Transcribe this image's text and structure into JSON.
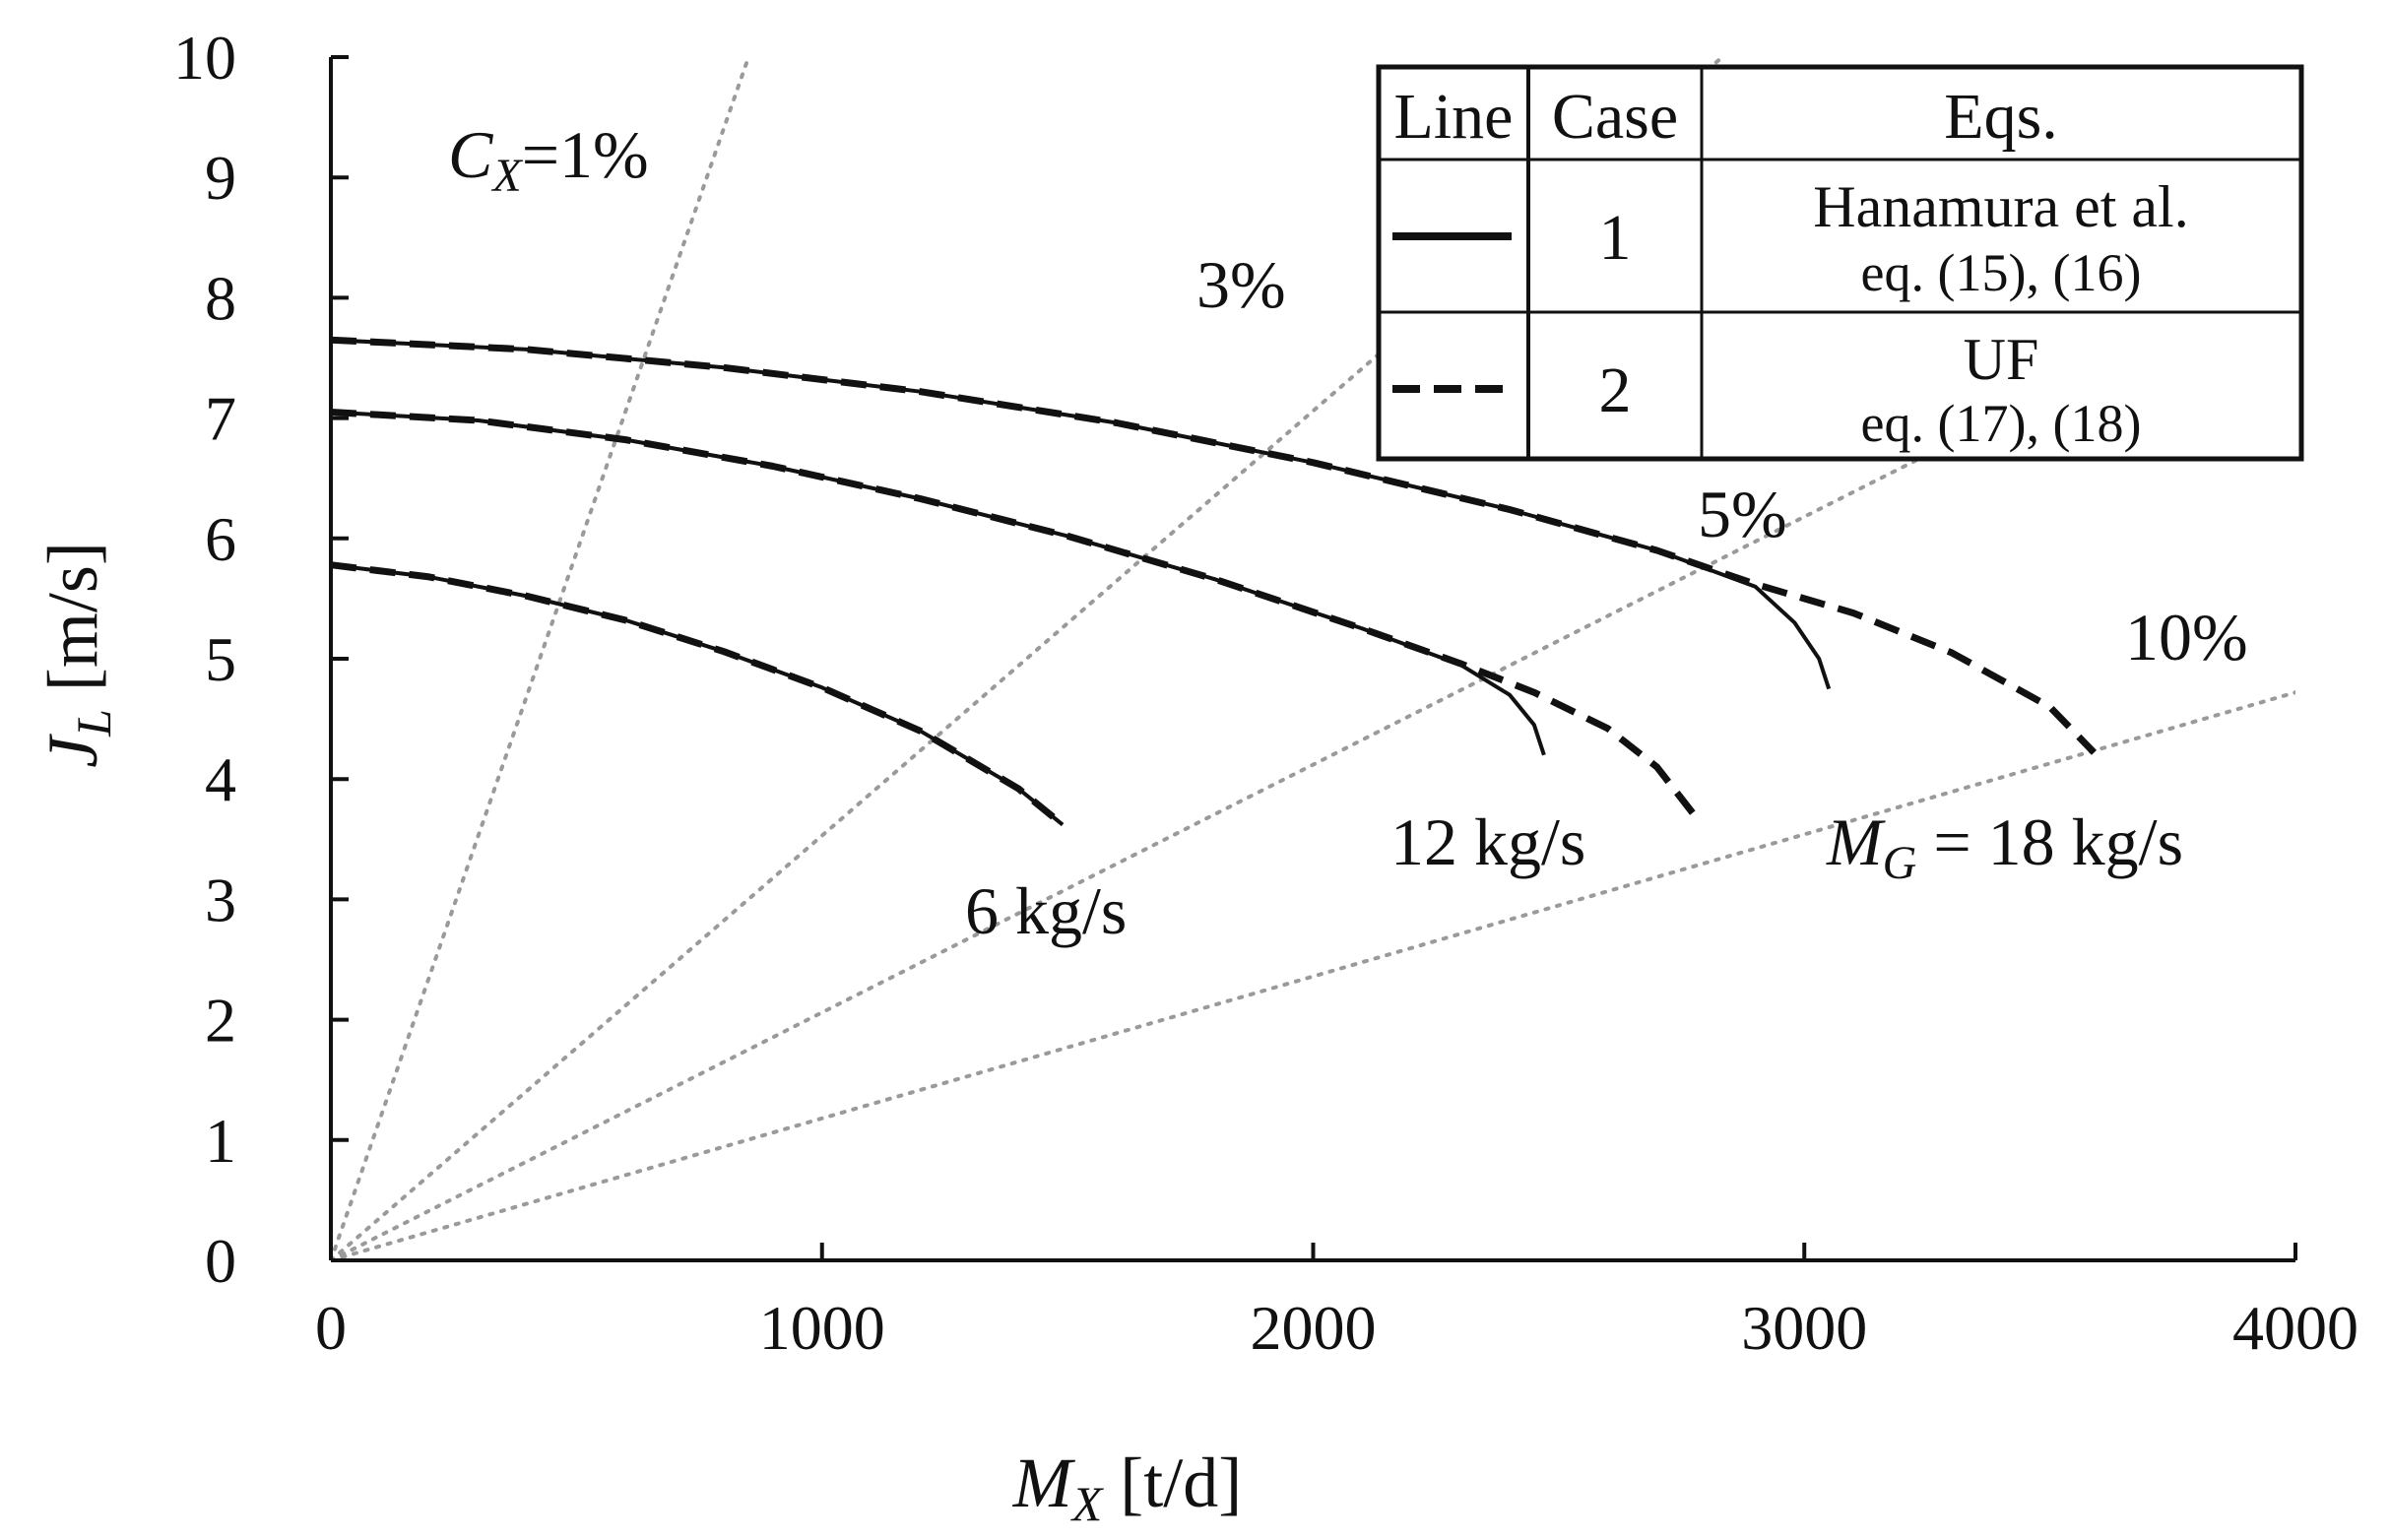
{
  "chart_data": {
    "type": "line",
    "x_axis": {
      "label_main": "M",
      "label_sub": "X",
      "label_unit": " [t/d]",
      "range": [
        0,
        4000
      ],
      "ticks": [
        0,
        1000,
        2000,
        3000,
        4000
      ],
      "tick_labels": [
        "0",
        "1000",
        "2000",
        "3000",
        "4000"
      ]
    },
    "y_axis": {
      "label_main": "J",
      "label_sub": "L",
      "label_unit": " [m/s]",
      "range": [
        0,
        10
      ],
      "ticks": [
        0,
        1,
        2,
        3,
        4,
        5,
        6,
        7,
        8,
        9,
        10
      ],
      "tick_labels": [
        "0",
        "1",
        "2",
        "3",
        "4",
        "5",
        "6",
        "7",
        "8",
        "9",
        "10"
      ]
    },
    "grid": false,
    "concentration_lines": [
      {
        "label": "1%",
        "slope": 0.01176
      },
      {
        "label": "3%",
        "slope": 0.00353
      },
      {
        "label": "5%",
        "slope": 0.00206
      },
      {
        "label": "10%",
        "slope": 0.00118
      }
    ],
    "concentration_prefix_main": "C",
    "concentration_prefix_sub": "X",
    "concentration_prefix_tail": "=",
    "gas_flow_labels": [
      {
        "prefix_main": "",
        "prefix_sub": "",
        "text": "6 kg/s"
      },
      {
        "prefix_main": "",
        "prefix_sub": "",
        "text": "12 kg/s"
      },
      {
        "prefix_main": "M",
        "prefix_sub": "G",
        "text": " = 18 kg/s"
      }
    ],
    "series": [
      {
        "case": "1",
        "group": "6 kg/s",
        "style": "solid",
        "x": [
          0,
          200,
          400,
          600,
          800,
          1000,
          1200,
          1400,
          1490
        ],
        "y": [
          5.78,
          5.68,
          5.52,
          5.32,
          5.06,
          4.76,
          4.4,
          3.92,
          3.62
        ]
      },
      {
        "case": "2",
        "group": "6 kg/s",
        "style": "dashed",
        "x": [
          0,
          200,
          400,
          600,
          800,
          1000,
          1200,
          1400,
          1490
        ],
        "y": [
          5.78,
          5.68,
          5.52,
          5.32,
          5.06,
          4.76,
          4.4,
          3.92,
          3.62
        ]
      },
      {
        "case": "1",
        "group": "12 kg/s",
        "style": "solid",
        "x": [
          0,
          300,
          600,
          900,
          1200,
          1500,
          1800,
          2100,
          2300,
          2400,
          2450,
          2470
        ],
        "y": [
          7.05,
          6.98,
          6.82,
          6.6,
          6.33,
          6.02,
          5.66,
          5.25,
          4.95,
          4.7,
          4.45,
          4.2
        ]
      },
      {
        "case": "2",
        "group": "12 kg/s",
        "style": "dashed",
        "x": [
          0,
          300,
          600,
          900,
          1200,
          1500,
          1800,
          2100,
          2300,
          2450,
          2600,
          2700,
          2780
        ],
        "y": [
          7.05,
          6.98,
          6.82,
          6.6,
          6.33,
          6.02,
          5.66,
          5.25,
          4.96,
          4.72,
          4.42,
          4.1,
          3.68
        ]
      },
      {
        "case": "1",
        "group": "18 kg/s",
        "style": "solid",
        "x": [
          0,
          400,
          800,
          1200,
          1600,
          2000,
          2400,
          2700,
          2900,
          2980,
          3030,
          3050
        ],
        "y": [
          7.65,
          7.57,
          7.42,
          7.22,
          6.96,
          6.63,
          6.24,
          5.9,
          5.6,
          5.3,
          5.0,
          4.75
        ]
      },
      {
        "case": "2",
        "group": "18 kg/s",
        "style": "dashed",
        "x": [
          0,
          400,
          800,
          1200,
          1600,
          2000,
          2400,
          2700,
          2900,
          3100,
          3300,
          3500,
          3590
        ],
        "y": [
          7.65,
          7.57,
          7.42,
          7.22,
          6.96,
          6.63,
          6.24,
          5.9,
          5.62,
          5.38,
          5.05,
          4.6,
          4.22
        ]
      }
    ],
    "legend": {
      "placement": "top-right",
      "headers": [
        "Line",
        "Case",
        "Eqs."
      ],
      "rows": [
        {
          "style": "solid",
          "case": "1",
          "eq_line1": "Hanamura et al.",
          "eq_line2": "eq. (15),  (16)"
        },
        {
          "style": "dashed",
          "case": "2",
          "eq_line1": "UF",
          "eq_line2": "eq. (17),  (18)"
        }
      ]
    }
  }
}
